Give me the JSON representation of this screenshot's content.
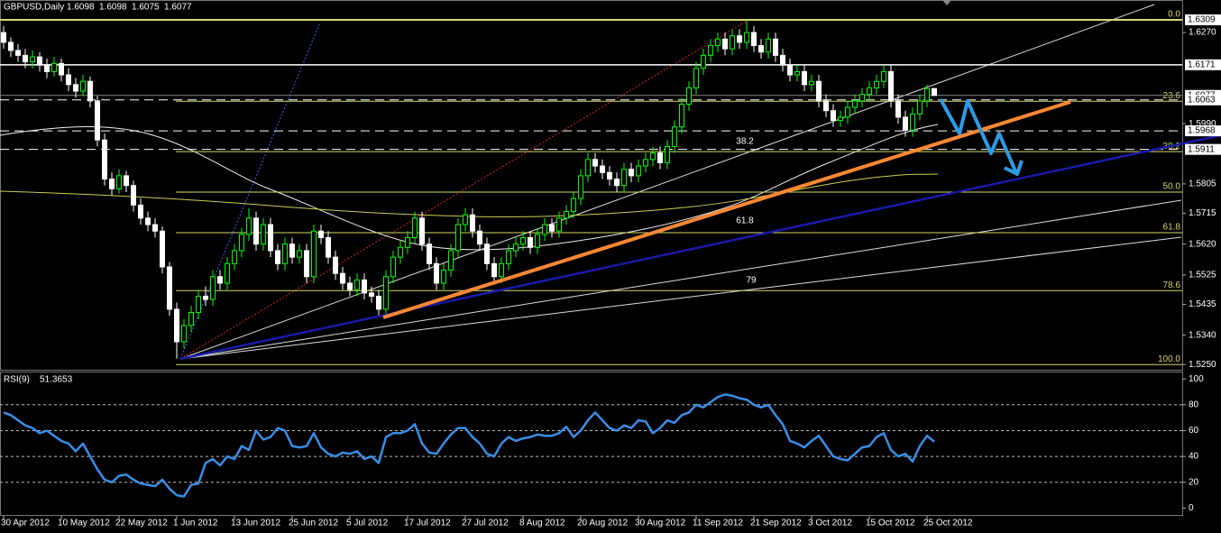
{
  "chart_data": {
    "type": "candlestick",
    "title": "GBPUSD,Daily",
    "up_color": "#00ff00",
    "down_color": "#ffffff",
    "x": [
      "30 Apr 2012",
      null,
      null,
      null,
      null,
      null,
      null,
      null,
      "10 May 2012",
      null,
      null,
      null,
      null,
      null,
      null,
      null,
      "22 May 2012",
      null,
      null,
      null,
      null,
      null,
      null,
      null,
      "1 Jun 2012",
      null,
      null,
      null,
      null,
      null,
      null,
      null,
      "13 Jun 2012",
      null,
      null,
      null,
      null,
      null,
      null,
      null,
      "25 Jun 2012",
      null,
      null,
      null,
      null,
      null,
      null,
      null,
      "5 Jul 2012",
      null,
      null,
      null,
      null,
      null,
      null,
      null,
      "17 Jul 2012",
      null,
      null,
      null,
      null,
      null,
      null,
      null,
      "27 Jul 2012",
      null,
      null,
      null,
      null,
      null,
      null,
      null,
      "8 Aug 2012",
      null,
      null,
      null,
      null,
      null,
      null,
      null,
      "20 Aug 2012",
      null,
      null,
      null,
      null,
      null,
      null,
      null,
      "30 Aug 2012",
      null,
      null,
      null,
      null,
      null,
      null,
      null,
      "11 Sep 2012",
      null,
      null,
      null,
      null,
      null,
      null,
      null,
      "21 Sep 2012",
      null,
      null,
      null,
      null,
      null,
      null,
      null,
      "3 Oct 2012",
      null,
      null,
      null,
      null,
      null,
      null,
      null,
      "15 Oct 2012",
      null,
      null,
      null,
      null,
      null,
      null,
      null,
      "25 Oct 2012",
      null
    ],
    "ohlc": [
      [
        1.627,
        1.629,
        1.622,
        1.624
      ],
      [
        1.624,
        1.6255,
        1.6195,
        1.6215
      ],
      [
        1.6215,
        1.6235,
        1.618,
        1.62
      ],
      [
        1.62,
        1.622,
        1.616,
        1.618
      ],
      [
        1.618,
        1.6215,
        1.616,
        1.6195
      ],
      [
        1.6195,
        1.621,
        1.615,
        1.617
      ],
      [
        1.617,
        1.619,
        1.613,
        1.615
      ],
      [
        1.615,
        1.6195,
        1.6135,
        1.6175
      ],
      [
        1.6175,
        1.619,
        1.612,
        1.614
      ],
      [
        1.614,
        1.616,
        1.609,
        1.611
      ],
      [
        1.611,
        1.613,
        1.607,
        1.609
      ],
      [
        1.609,
        1.614,
        1.6075,
        1.612
      ],
      [
        1.612,
        1.6135,
        1.604,
        1.606
      ],
      [
        1.606,
        1.6075,
        1.592,
        1.594
      ],
      [
        1.594,
        1.596,
        1.58,
        1.582
      ],
      [
        1.582,
        1.584,
        1.577,
        1.579
      ],
      [
        1.579,
        1.585,
        1.5775,
        1.583
      ],
      [
        1.583,
        1.5845,
        1.578,
        1.58
      ],
      [
        1.58,
        1.5815,
        1.572,
        1.574
      ],
      [
        1.574,
        1.576,
        1.568,
        1.57
      ],
      [
        1.57,
        1.572,
        1.566,
        1.568
      ],
      [
        1.568,
        1.57,
        1.564,
        1.566
      ],
      [
        1.566,
        1.5675,
        1.553,
        1.555
      ],
      [
        1.555,
        1.5565,
        1.54,
        1.542
      ],
      [
        1.542,
        1.544,
        1.5268,
        1.532
      ],
      [
        1.532,
        1.539,
        1.53,
        1.537
      ],
      [
        1.537,
        1.543,
        1.535,
        1.541
      ],
      [
        1.541,
        1.548,
        1.539,
        1.546
      ],
      [
        1.546,
        1.549,
        1.543,
        1.545
      ],
      [
        1.545,
        1.554,
        1.543,
        1.552
      ],
      [
        1.552,
        1.554,
        1.548,
        1.55
      ],
      [
        1.55,
        1.558,
        1.548,
        1.556
      ],
      [
        1.556,
        1.562,
        1.554,
        1.56
      ],
      [
        1.56,
        1.567,
        1.558,
        1.565
      ],
      [
        1.565,
        1.573,
        1.563,
        1.57
      ],
      [
        1.57,
        1.572,
        1.56,
        1.562
      ],
      [
        1.562,
        1.57,
        1.56,
        1.568
      ],
      [
        1.568,
        1.57,
        1.558,
        1.56
      ],
      [
        1.56,
        1.562,
        1.554,
        1.556
      ],
      [
        1.556,
        1.564,
        1.554,
        1.562
      ],
      [
        1.562,
        1.564,
        1.556,
        1.558
      ],
      [
        1.558,
        1.562,
        1.556,
        1.56
      ],
      [
        1.56,
        1.562,
        1.55,
        1.552
      ],
      [
        1.552,
        1.568,
        1.55,
        1.566
      ],
      [
        1.566,
        1.568,
        1.562,
        1.564
      ],
      [
        1.564,
        1.566,
        1.556,
        1.558
      ],
      [
        1.558,
        1.56,
        1.551,
        1.553
      ],
      [
        1.553,
        1.555,
        1.548,
        1.55
      ],
      [
        1.55,
        1.552,
        1.546,
        1.548
      ],
      [
        1.548,
        1.553,
        1.546,
        1.551
      ],
      [
        1.551,
        1.553,
        1.545,
        1.547
      ],
      [
        1.547,
        1.549,
        1.544,
        1.546
      ],
      [
        1.546,
        1.548,
        1.54,
        1.542
      ],
      [
        1.542,
        1.554,
        1.54,
        1.552
      ],
      [
        1.552,
        1.56,
        1.55,
        1.558
      ],
      [
        1.558,
        1.563,
        1.556,
        1.561
      ],
      [
        1.561,
        1.566,
        1.559,
        1.564
      ],
      [
        1.564,
        1.572,
        1.562,
        1.57
      ],
      [
        1.57,
        1.572,
        1.56,
        1.562
      ],
      [
        1.562,
        1.564,
        1.554,
        1.556
      ],
      [
        1.556,
        1.558,
        1.548,
        1.55
      ],
      [
        1.55,
        1.556,
        1.548,
        1.554
      ],
      [
        1.554,
        1.562,
        1.552,
        1.56
      ],
      [
        1.56,
        1.57,
        1.558,
        1.568
      ],
      [
        1.568,
        1.573,
        1.566,
        1.571
      ],
      [
        1.571,
        1.573,
        1.564,
        1.566
      ],
      [
        1.566,
        1.568,
        1.56,
        1.562
      ],
      [
        1.562,
        1.564,
        1.554,
        1.556
      ],
      [
        1.556,
        1.558,
        1.55,
        1.552
      ],
      [
        1.552,
        1.558,
        1.55,
        1.556
      ],
      [
        1.556,
        1.562,
        1.554,
        1.56
      ],
      [
        1.56,
        1.564,
        1.558,
        1.562
      ],
      [
        1.562,
        1.566,
        1.56,
        1.564
      ],
      [
        1.564,
        1.566,
        1.559,
        1.561
      ],
      [
        1.561,
        1.567,
        1.559,
        1.565
      ],
      [
        1.565,
        1.57,
        1.563,
        1.568
      ],
      [
        1.568,
        1.57,
        1.564,
        1.566
      ],
      [
        1.566,
        1.572,
        1.564,
        1.57
      ],
      [
        1.57,
        1.574,
        1.568,
        1.572
      ],
      [
        1.572,
        1.578,
        1.57,
        1.576
      ],
      [
        1.576,
        1.585,
        1.574,
        1.583
      ],
      [
        1.583,
        1.59,
        1.581,
        1.588
      ],
      [
        1.588,
        1.59,
        1.584,
        1.586
      ],
      [
        1.586,
        1.588,
        1.582,
        1.584
      ],
      [
        1.584,
        1.586,
        1.58,
        1.582
      ],
      [
        1.582,
        1.584,
        1.578,
        1.58
      ],
      [
        1.58,
        1.587,
        1.578,
        1.585
      ],
      [
        1.585,
        1.587,
        1.581,
        1.583
      ],
      [
        1.583,
        1.588,
        1.581,
        1.586
      ],
      [
        1.586,
        1.59,
        1.584,
        1.588
      ],
      [
        1.588,
        1.592,
        1.586,
        1.59
      ],
      [
        1.59,
        1.592,
        1.585,
        1.587
      ],
      [
        1.587,
        1.594,
        1.585,
        1.592
      ],
      [
        1.592,
        1.6,
        1.59,
        1.598
      ],
      [
        1.598,
        1.607,
        1.596,
        1.605
      ],
      [
        1.605,
        1.612,
        1.603,
        1.61
      ],
      [
        1.61,
        1.618,
        1.608,
        1.616
      ],
      [
        1.616,
        1.622,
        1.614,
        1.62
      ],
      [
        1.62,
        1.625,
        1.618,
        1.623
      ],
      [
        1.623,
        1.627,
        1.621,
        1.625
      ],
      [
        1.625,
        1.627,
        1.62,
        1.622
      ],
      [
        1.622,
        1.628,
        1.62,
        1.626
      ],
      [
        1.626,
        1.628,
        1.622,
        1.624
      ],
      [
        1.624,
        1.6309,
        1.622,
        1.627
      ],
      [
        1.627,
        1.629,
        1.621,
        1.623
      ],
      [
        1.623,
        1.625,
        1.619,
        1.621
      ],
      [
        1.621,
        1.627,
        1.619,
        1.625
      ],
      [
        1.625,
        1.627,
        1.618,
        1.62
      ],
      [
        1.62,
        1.622,
        1.615,
        1.617
      ],
      [
        1.617,
        1.619,
        1.612,
        1.614
      ],
      [
        1.614,
        1.617,
        1.612,
        1.615
      ],
      [
        1.615,
        1.617,
        1.609,
        1.611
      ],
      [
        1.611,
        1.614,
        1.609,
        1.612
      ],
      [
        1.612,
        1.614,
        1.604,
        1.606
      ],
      [
        1.606,
        1.608,
        1.601,
        1.603
      ],
      [
        1.603,
        1.605,
        1.598,
        1.6
      ],
      [
        1.6,
        1.603,
        1.598,
        1.601
      ],
      [
        1.601,
        1.606,
        1.599,
        1.604
      ],
      [
        1.604,
        1.608,
        1.602,
        1.606
      ],
      [
        1.606,
        1.61,
        1.604,
        1.608
      ],
      [
        1.608,
        1.612,
        1.606,
        1.61
      ],
      [
        1.61,
        1.614,
        1.608,
        1.612
      ],
      [
        1.612,
        1.6171,
        1.61,
        1.615
      ],
      [
        1.615,
        1.617,
        1.604,
        1.606
      ],
      [
        1.606,
        1.608,
        1.599,
        1.601
      ],
      [
        1.601,
        1.603,
        1.595,
        1.597
      ],
      [
        1.597,
        1.604,
        1.595,
        1.602
      ],
      [
        1.602,
        1.608,
        1.6,
        1.606
      ],
      [
        1.606,
        1.611,
        1.604,
        1.6098
      ],
      [
        1.6098,
        1.6098,
        1.6075,
        1.6077
      ]
    ],
    "ylim": [
      1.5234,
      1.637
    ],
    "yticks": [
      {
        "value": 1.627,
        "label": "1.6270"
      },
      {
        "value": 1.599,
        "label": "1.5990"
      },
      1.5805,
      1.5715,
      {
        "value": 1.562,
        "label": "1.5620"
      },
      1.5525,
      1.5435,
      {
        "value": 1.534,
        "label": "1.5340"
      },
      {
        "value": 1.525,
        "label": "1.5250"
      }
    ],
    "levels": [
      {
        "value": 1.6309,
        "line": "none"
      },
      {
        "value": 1.6171,
        "line": "solid"
      },
      {
        "value": 1.6077,
        "line": "current"
      },
      {
        "value": 1.6063,
        "line": "dashed"
      },
      {
        "value": 1.5968,
        "line": "dashed"
      },
      {
        "value": 1.5911,
        "line": "dashed"
      }
    ],
    "fibonacci": {
      "color": "#d8d86a",
      "levels": [
        {
          "value": 1.6309,
          "label": "0.0"
        },
        {
          "value": 1.6059,
          "label": "23.6"
        },
        {
          "value": 1.5904,
          "label": "38.2"
        },
        {
          "value": 1.578,
          "label": "50.0"
        },
        {
          "value": 1.5655,
          "label": "61.8"
        },
        {
          "value": 1.5477,
          "label": "78.6"
        },
        {
          "value": 1.525,
          "label": "100.0"
        }
      ]
    },
    "annotations": [
      "38.2",
      "61.8",
      "79"
    ],
    "rsi": {
      "type": "line",
      "title": "RSI(9)",
      "color": "#3a8ee6",
      "values": [
        74,
        72,
        68,
        64,
        62,
        58,
        60,
        56,
        52,
        50,
        44,
        50,
        40,
        30,
        22,
        20,
        25,
        26,
        22,
        19,
        18,
        17,
        22,
        15,
        10,
        9,
        18,
        19,
        35,
        38,
        33,
        40,
        38,
        48,
        45,
        60,
        53,
        55,
        62,
        60,
        48,
        47,
        48,
        58,
        47,
        42,
        40,
        43,
        42,
        44,
        38,
        40,
        35,
        55,
        58,
        58,
        60,
        65,
        50,
        43,
        42,
        50,
        57,
        62,
        62,
        55,
        50,
        42,
        40,
        50,
        55,
        52,
        54,
        55,
        57,
        56,
        56,
        58,
        63,
        55,
        60,
        68,
        74,
        68,
        62,
        60,
        64,
        62,
        68,
        67,
        58,
        62,
        68,
        66,
        72,
        74,
        80,
        78,
        82,
        86,
        88,
        87,
        85,
        84,
        80,
        78,
        80,
        72,
        65,
        52,
        50,
        47,
        52,
        56,
        48,
        40,
        38,
        37,
        42,
        47,
        48,
        55,
        58,
        45,
        40,
        42,
        36,
        48,
        56,
        51.3653
      ],
      "ylim": [
        -6,
        105
      ],
      "yticks": [
        100,
        80,
        60,
        40,
        20,
        0
      ]
    }
  }
}
